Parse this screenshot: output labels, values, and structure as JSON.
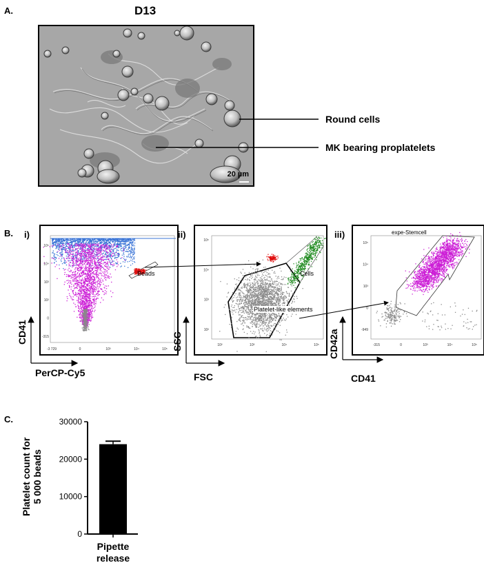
{
  "panel_a": {
    "letter": "A.",
    "title": "D13",
    "scale_bar": "20 µm",
    "annotations": {
      "round_cells": "Round cells",
      "mk_proplatelets": "MK bearing proplatelets"
    }
  },
  "panel_b": {
    "letter": "B.",
    "sub_i": {
      "label": "i)",
      "gate": "Beads",
      "y_axis": "CD41",
      "x_axis": "PerCP-Cy5",
      "y_ticks": [
        "10⁵",
        "10⁴",
        "10³",
        "10²",
        "0",
        "-315"
      ],
      "x_ticks": [
        "-3 729",
        "0",
        "10³",
        "10⁴",
        "10⁵"
      ],
      "colors": {
        "blue": "#3a74d6",
        "magenta": "#cc1fd6",
        "red": "#e01010",
        "gray": "#8a8a8a"
      }
    },
    "sub_ii": {
      "label": "ii)",
      "gate_cells": "Cells",
      "gate_platelets": "Platelet-like elements",
      "y_axis": "SSC",
      "x_axis": "FSC",
      "y_ticks": [
        "10⁵",
        "10⁴",
        "10³",
        "10²"
      ],
      "x_ticks": [
        "10²",
        "10³",
        "10⁴",
        "10⁵"
      ],
      "colors": {
        "red": "#e01010",
        "green": "#1f8a1f",
        "gray": "#8a8a8a"
      }
    },
    "sub_iii": {
      "label": "iii)",
      "header": "expe-Stemcell",
      "y_axis": "CD42a",
      "x_axis": "CD41",
      "y_ticks": [
        "10⁵",
        "10⁴",
        "10³",
        "0",
        "-949"
      ],
      "x_ticks": [
        "-315",
        "0",
        "10³",
        "10⁴",
        "10⁵"
      ],
      "colors": {
        "magenta": "#cc1fd6",
        "gray": "#8a8a8a"
      }
    }
  },
  "panel_c": {
    "letter": "C.",
    "chart_data": {
      "type": "bar",
      "categories": [
        "Pipette\nrelease"
      ],
      "values": [
        24000
      ],
      "error": [
        800
      ],
      "ylabel": "Platelet count for\n5 000 beads",
      "ylim": [
        0,
        30000
      ],
      "y_ticks": [
        0,
        10000,
        20000,
        30000
      ],
      "bar_color": "#000000"
    },
    "category_line1": "Pipette",
    "category_line2": "release",
    "ylabel_line1": "Platelet count for",
    "ylabel_line2": "5 000 beads"
  }
}
